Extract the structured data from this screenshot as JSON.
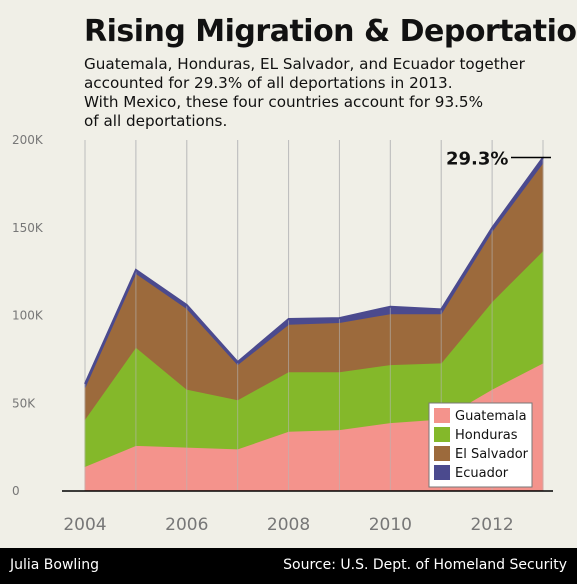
{
  "header": {
    "title": "Rising Migration & Deportation",
    "subtitle_lines": [
      "Guatemala, Honduras, EL Salvador, and Ecuador together",
      "accounted for 29.3% of all deportations in 2013.",
      "With Mexico, these four countries account for 93.5%",
      "of all deportations."
    ]
  },
  "footer": {
    "author": "Julia Bowling",
    "source": "Source: U.S. Dept. of Homeland Security"
  },
  "chart_data": {
    "type": "area",
    "stacked": true,
    "x": [
      2004,
      2005,
      2006,
      2007,
      2008,
      2009,
      2010,
      2011,
      2012,
      2013
    ],
    "x_ticks": [
      "2004",
      "2006",
      "2008",
      "2010",
      "2012"
    ],
    "y_ticks": [
      "0",
      "50K",
      "100K",
      "150K",
      "200K"
    ],
    "ylim": [
      0,
      200000
    ],
    "grid": "vertical",
    "legend_position": "bottom-right",
    "annotation": "29.3%",
    "series": [
      {
        "name": "Guatemala",
        "color": "#f4938c",
        "values": [
          14000,
          26000,
          25000,
          24000,
          34000,
          35000,
          39000,
          41000,
          58000,
          73000
        ]
      },
      {
        "name": "Honduras",
        "color": "#84b82a",
        "values": [
          27000,
          56000,
          33000,
          28000,
          34000,
          33000,
          33000,
          32000,
          50000,
          64000
        ]
      },
      {
        "name": "El Salvador",
        "color": "#9c6a3c",
        "values": [
          18000,
          42000,
          46000,
          20000,
          27000,
          28000,
          29000,
          28000,
          40000,
          50000
        ]
      },
      {
        "name": "Ecuador",
        "color": "#4b4a8e",
        "values": [
          2000,
          2000,
          2000,
          1500,
          3000,
          2500,
          4000,
          2500,
          2000,
          3000
        ]
      }
    ]
  }
}
